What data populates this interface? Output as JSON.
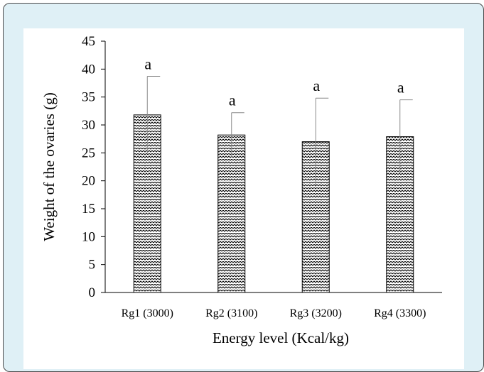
{
  "chart_data": {
    "type": "bar",
    "categories": [
      "Rg1 (3000)",
      "Rg2 (3100)",
      "Rg3 (3200)",
      "Rg4 (3300)"
    ],
    "values": [
      31.8,
      28.2,
      27.0,
      27.9
    ],
    "error_plus": [
      6.9,
      4.0,
      7.8,
      6.6
    ],
    "error_minus": [
      6.9,
      4.0,
      7.8,
      6.6
    ],
    "annotations": [
      "a",
      "a",
      "a",
      "a"
    ],
    "title": "",
    "xlabel": "Energy level  (Kcal/kg)",
    "ylabel": "Weight  of the ovaries (g)",
    "ylim": [
      0,
      45
    ],
    "yticks": [
      0,
      5,
      10,
      15,
      20,
      25,
      30,
      35,
      40,
      45
    ],
    "grid": false,
    "legend": "none",
    "colors": {
      "bar_fill": "#d9d9d9",
      "bar_stroke": "#000000",
      "frame_bg": "#dff0f6",
      "frame_border": "#4a4a4a",
      "error_bar": "#888888"
    }
  }
}
